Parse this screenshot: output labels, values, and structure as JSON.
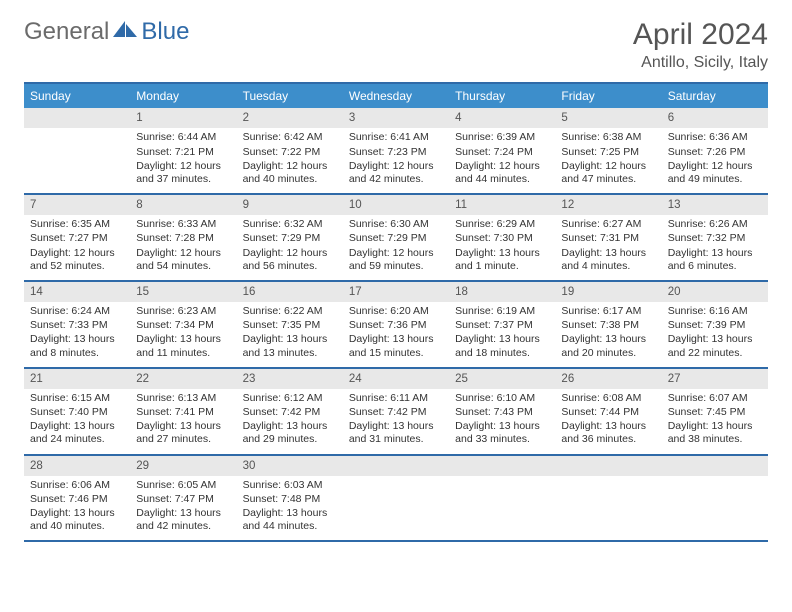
{
  "brand": {
    "name_a": "General",
    "name_b": "Blue"
  },
  "title": "April 2024",
  "location": "Antillo, Sicily, Italy",
  "colors": {
    "accent": "#2f6aa8",
    "header_bg": "#3d8ecb",
    "daynum_bg": "#e8e8e8",
    "text": "#333333",
    "muted": "#555555"
  },
  "days_of_week": [
    "Sunday",
    "Monday",
    "Tuesday",
    "Wednesday",
    "Thursday",
    "Friday",
    "Saturday"
  ],
  "grid": {
    "first_weekday_index": 1,
    "num_days": 30
  },
  "days": {
    "1": {
      "sunrise": "6:44 AM",
      "sunset": "7:21 PM",
      "daylight": "12 hours and 37 minutes."
    },
    "2": {
      "sunrise": "6:42 AM",
      "sunset": "7:22 PM",
      "daylight": "12 hours and 40 minutes."
    },
    "3": {
      "sunrise": "6:41 AM",
      "sunset": "7:23 PM",
      "daylight": "12 hours and 42 minutes."
    },
    "4": {
      "sunrise": "6:39 AM",
      "sunset": "7:24 PM",
      "daylight": "12 hours and 44 minutes."
    },
    "5": {
      "sunrise": "6:38 AM",
      "sunset": "7:25 PM",
      "daylight": "12 hours and 47 minutes."
    },
    "6": {
      "sunrise": "6:36 AM",
      "sunset": "7:26 PM",
      "daylight": "12 hours and 49 minutes."
    },
    "7": {
      "sunrise": "6:35 AM",
      "sunset": "7:27 PM",
      "daylight": "12 hours and 52 minutes."
    },
    "8": {
      "sunrise": "6:33 AM",
      "sunset": "7:28 PM",
      "daylight": "12 hours and 54 minutes."
    },
    "9": {
      "sunrise": "6:32 AM",
      "sunset": "7:29 PM",
      "daylight": "12 hours and 56 minutes."
    },
    "10": {
      "sunrise": "6:30 AM",
      "sunset": "7:29 PM",
      "daylight": "12 hours and 59 minutes."
    },
    "11": {
      "sunrise": "6:29 AM",
      "sunset": "7:30 PM",
      "daylight": "13 hours and 1 minute."
    },
    "12": {
      "sunrise": "6:27 AM",
      "sunset": "7:31 PM",
      "daylight": "13 hours and 4 minutes."
    },
    "13": {
      "sunrise": "6:26 AM",
      "sunset": "7:32 PM",
      "daylight": "13 hours and 6 minutes."
    },
    "14": {
      "sunrise": "6:24 AM",
      "sunset": "7:33 PM",
      "daylight": "13 hours and 8 minutes."
    },
    "15": {
      "sunrise": "6:23 AM",
      "sunset": "7:34 PM",
      "daylight": "13 hours and 11 minutes."
    },
    "16": {
      "sunrise": "6:22 AM",
      "sunset": "7:35 PM",
      "daylight": "13 hours and 13 minutes."
    },
    "17": {
      "sunrise": "6:20 AM",
      "sunset": "7:36 PM",
      "daylight": "13 hours and 15 minutes."
    },
    "18": {
      "sunrise": "6:19 AM",
      "sunset": "7:37 PM",
      "daylight": "13 hours and 18 minutes."
    },
    "19": {
      "sunrise": "6:17 AM",
      "sunset": "7:38 PM",
      "daylight": "13 hours and 20 minutes."
    },
    "20": {
      "sunrise": "6:16 AM",
      "sunset": "7:39 PM",
      "daylight": "13 hours and 22 minutes."
    },
    "21": {
      "sunrise": "6:15 AM",
      "sunset": "7:40 PM",
      "daylight": "13 hours and 24 minutes."
    },
    "22": {
      "sunrise": "6:13 AM",
      "sunset": "7:41 PM",
      "daylight": "13 hours and 27 minutes."
    },
    "23": {
      "sunrise": "6:12 AM",
      "sunset": "7:42 PM",
      "daylight": "13 hours and 29 minutes."
    },
    "24": {
      "sunrise": "6:11 AM",
      "sunset": "7:42 PM",
      "daylight": "13 hours and 31 minutes."
    },
    "25": {
      "sunrise": "6:10 AM",
      "sunset": "7:43 PM",
      "daylight": "13 hours and 33 minutes."
    },
    "26": {
      "sunrise": "6:08 AM",
      "sunset": "7:44 PM",
      "daylight": "13 hours and 36 minutes."
    },
    "27": {
      "sunrise": "6:07 AM",
      "sunset": "7:45 PM",
      "daylight": "13 hours and 38 minutes."
    },
    "28": {
      "sunrise": "6:06 AM",
      "sunset": "7:46 PM",
      "daylight": "13 hours and 40 minutes."
    },
    "29": {
      "sunrise": "6:05 AM",
      "sunset": "7:47 PM",
      "daylight": "13 hours and 42 minutes."
    },
    "30": {
      "sunrise": "6:03 AM",
      "sunset": "7:48 PM",
      "daylight": "13 hours and 44 minutes."
    }
  },
  "labels": {
    "sunrise": "Sunrise:",
    "sunset": "Sunset:",
    "daylight": "Daylight:"
  }
}
